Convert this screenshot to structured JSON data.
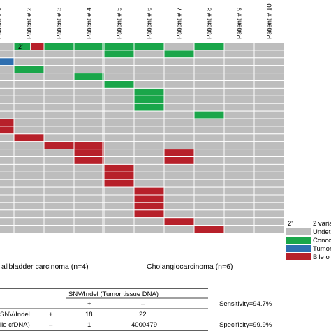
{
  "chart_data": {
    "type": "heatmap",
    "columns": [
      "Patient # 1",
      "Patient # 2",
      "Patient # 3",
      "Patient # 4",
      "Patient # 5",
      "Patient # 6",
      "Patient # 7",
      "Patient # 8",
      "Patient # 9",
      "Patient # 10"
    ],
    "row_count": 25,
    "cells": [
      {
        "row": 0,
        "col": 1,
        "status": "concordant",
        "marker": "2'"
      },
      {
        "row": 0,
        "col": 2,
        "status": "concordant"
      },
      {
        "row": 0,
        "col": 3,
        "status": "concordant"
      },
      {
        "row": 0,
        "col": 4,
        "status": "concordant"
      },
      {
        "row": 0,
        "col": 5,
        "status": "concordant"
      },
      {
        "row": 0,
        "col": 7,
        "status": "concordant"
      },
      {
        "row": 1,
        "col": 4,
        "status": "concordant"
      },
      {
        "row": 1,
        "col": 6,
        "status": "concordant"
      },
      {
        "row": 2,
        "col": 0,
        "status": "tumor_only"
      },
      {
        "row": 3,
        "col": 1,
        "status": "concordant"
      },
      {
        "row": 4,
        "col": 3,
        "status": "concordant"
      },
      {
        "row": 5,
        "col": 4,
        "status": "concordant"
      },
      {
        "row": 6,
        "col": 5,
        "status": "concordant"
      },
      {
        "row": 7,
        "col": 5,
        "status": "concordant"
      },
      {
        "row": 8,
        "col": 5,
        "status": "concordant"
      },
      {
        "row": 9,
        "col": 7,
        "status": "concordant"
      },
      {
        "row": 10,
        "col": 0,
        "status": "bile_only"
      },
      {
        "row": 11,
        "col": 0,
        "status": "bile_only"
      },
      {
        "row": 12,
        "col": 1,
        "status": "bile_only"
      },
      {
        "row": 13,
        "col": 2,
        "status": "bile_only"
      },
      {
        "row": 13,
        "col": 3,
        "status": "bile_only"
      },
      {
        "row": 14,
        "col": 3,
        "status": "bile_only"
      },
      {
        "row": 14,
        "col": 6,
        "status": "bile_only"
      },
      {
        "row": 15,
        "col": 3,
        "status": "bile_only"
      },
      {
        "row": 15,
        "col": 6,
        "status": "bile_only"
      },
      {
        "row": 16,
        "col": 4,
        "status": "bile_only"
      },
      {
        "row": 17,
        "col": 4,
        "status": "bile_only"
      },
      {
        "row": 18,
        "col": 4,
        "status": "bile_only"
      },
      {
        "row": 19,
        "col": 5,
        "status": "bile_only"
      },
      {
        "row": 20,
        "col": 5,
        "status": "bile_only"
      },
      {
        "row": 21,
        "col": 5,
        "status": "bile_only"
      },
      {
        "row": 22,
        "col": 5,
        "status": "bile_only"
      },
      {
        "row": 23,
        "col": 6,
        "status": "bile_only"
      },
      {
        "row": 24,
        "col": 7,
        "status": "bile_only"
      }
    ],
    "groups": [
      {
        "label": "allbladder carcinoma (n=4)"
      },
      {
        "label": "Cholangiocarcinoma (n=6)"
      }
    ],
    "legend": [
      {
        "status": "two_variants",
        "label": "2 varia",
        "marker": "2'"
      },
      {
        "status": "undetected",
        "label": "Undet"
      },
      {
        "status": "concordant",
        "label": "Conco"
      },
      {
        "status": "tumor_only",
        "label": "Tumor"
      },
      {
        "status": "bile_only",
        "label": "Bile o"
      }
    ],
    "colors": {
      "undetected": "#bdbdbd",
      "concordant": "#1aa64a",
      "tumor_only": "#2e6fb0",
      "bile_only": "#b7202a",
      "grid": "#ffffff"
    },
    "legend_position": "bottom-right"
  },
  "table": {
    "header": "SNV/Indel (Tumor tissue DNA)",
    "col_signs": [
      "+",
      "–"
    ],
    "row_label_1": "SNV/Indel",
    "row_label_2": "ile cfDNA)",
    "row_signs": [
      "+",
      "–"
    ],
    "values": [
      [
        "18",
        "22"
      ],
      [
        "1",
        "4000479"
      ]
    ]
  },
  "stats": {
    "sensitivity": "Sensitivity=94.7%",
    "specificity": "Specificity=99.9%"
  }
}
